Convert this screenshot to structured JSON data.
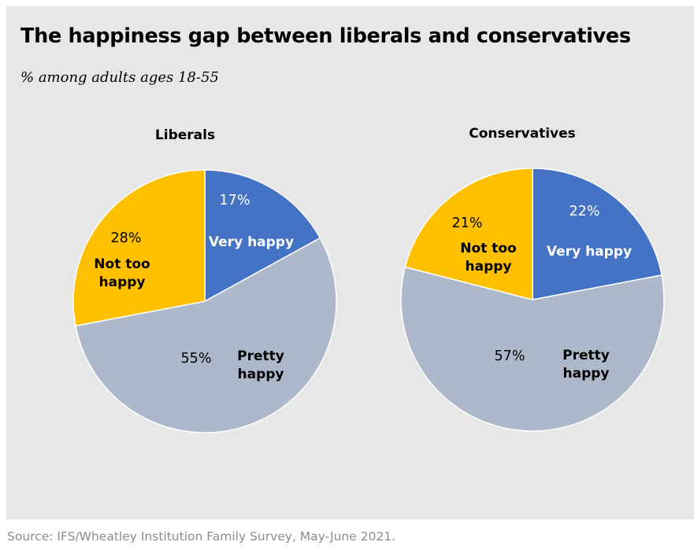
{
  "title": "The happiness gap between liberals and conservatives",
  "subtitle": "% among adults ages 18-55",
  "source": "Source: IFS/Wheatley Institution Family Survey, May-June 2021.",
  "colors": {
    "very_happy": "#4472c4",
    "pretty_happy": "#adb9ca",
    "not_too_happy": "#ffc000"
  },
  "chart_data": [
    {
      "type": "pie",
      "title": "Liberals",
      "categories": [
        "Very happy",
        "Pretty happy",
        "Not too happy"
      ],
      "values": [
        17,
        55,
        28
      ],
      "value_labels": [
        "17%",
        "55%",
        "28%"
      ],
      "category_labels": [
        [
          "Very happy"
        ],
        [
          "Pretty",
          "happy"
        ],
        [
          "Not too",
          "happy"
        ]
      ]
    },
    {
      "type": "pie",
      "title": "Conservatives",
      "categories": [
        "Very happy",
        "Pretty happy",
        "Not too happy"
      ],
      "values": [
        22,
        57,
        21
      ],
      "value_labels": [
        "22%",
        "57%",
        "21%"
      ],
      "category_labels": [
        [
          "Very happy"
        ],
        [
          "Pretty",
          "happy"
        ],
        [
          "Not too",
          "happy"
        ]
      ]
    }
  ]
}
